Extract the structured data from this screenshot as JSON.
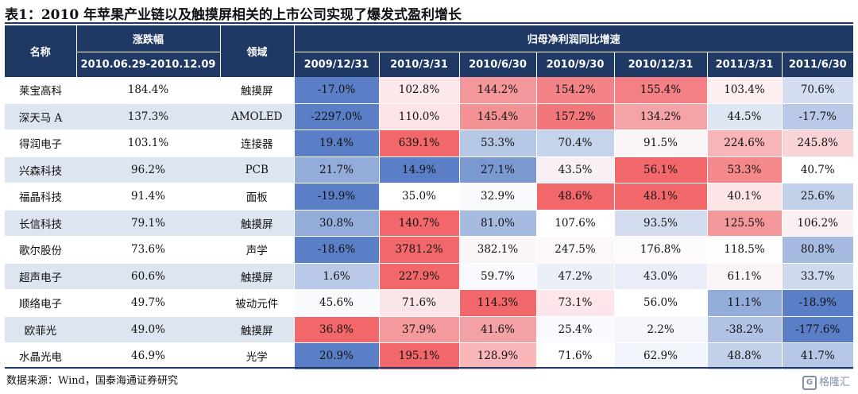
{
  "title": "表1：2010 年苹果产业链以及触摸屏相关的上市公司实现了爆发式盈利增长",
  "headers": {
    "name": "名称",
    "change": "涨跌幅",
    "change_period": "2010.06.29-2010.12.09",
    "field": "领域",
    "profit": "归母净利润同比增速",
    "periods": [
      "2009/12/31",
      "2010/3/31",
      "2010/6/30",
      "2010/9/30",
      "2010/12/31",
      "2011/3/31",
      "2011/6/30"
    ]
  },
  "colors": {
    "header_bg": "#1f3864",
    "alt_row": "#dde5f1",
    "positive_max": "#f2676a",
    "negative_max": "#5a7fc6"
  },
  "rows": [
    {
      "name": "莱宝高科",
      "change": "184.4%",
      "field": "触摸屏",
      "values": [
        "-17.0%",
        "102.8%",
        "144.2%",
        "154.2%",
        "155.4%",
        "103.4%",
        "70.6%"
      ]
    },
    {
      "name": "深天马 A",
      "change": "137.3%",
      "field": "AMOLED",
      "values": [
        "-2297.0%",
        "110.0%",
        "145.4%",
        "157.2%",
        "134.2%",
        "44.5%",
        "-17.7%"
      ]
    },
    {
      "name": "得润电子",
      "change": "103.1%",
      "field": "连接器",
      "values": [
        "19.4%",
        "639.1%",
        "53.3%",
        "70.4%",
        "91.5%",
        "224.6%",
        "245.8%"
      ]
    },
    {
      "name": "兴森科技",
      "change": "96.2%",
      "field": "PCB",
      "values": [
        "21.7%",
        "14.9%",
        "27.1%",
        "43.5%",
        "56.1%",
        "53.3%",
        "40.7%"
      ]
    },
    {
      "name": "福晶科技",
      "change": "91.4%",
      "field": "面板",
      "values": [
        "-19.9%",
        "35.0%",
        "32.9%",
        "48.6%",
        "48.1%",
        "40.1%",
        "25.6%"
      ]
    },
    {
      "name": "长信科技",
      "change": "79.1%",
      "field": "触摸屏",
      "values": [
        "30.8%",
        "140.7%",
        "81.0%",
        "107.6%",
        "93.5%",
        "125.5%",
        "106.2%"
      ]
    },
    {
      "name": "歌尔股份",
      "change": "73.6%",
      "field": "声学",
      "values": [
        "-18.6%",
        "3781.2%",
        "382.1%",
        "247.5%",
        "176.8%",
        "118.5%",
        "80.8%"
      ]
    },
    {
      "name": "超声电子",
      "change": "60.6%",
      "field": "触摸屏",
      "values": [
        "1.6%",
        "227.9%",
        "59.7%",
        "47.2%",
        "43.0%",
        "61.1%",
        "33.7%"
      ]
    },
    {
      "name": "顺络电子",
      "change": "49.7%",
      "field": "被动元件",
      "values": [
        "45.6%",
        "71.6%",
        "114.3%",
        "73.1%",
        "56.0%",
        "11.1%",
        "-18.9%"
      ]
    },
    {
      "name": "欧菲光",
      "change": "49.0%",
      "field": "触摸屏",
      "values": [
        "36.8%",
        "37.9%",
        "41.6%",
        "25.4%",
        "2.2%",
        "-38.2%",
        "-177.6%"
      ]
    },
    {
      "name": "水晶光电",
      "change": "46.9%",
      "field": "光学",
      "values": [
        "20.9%",
        "195.1%",
        "128.9%",
        "71.6%",
        "62.9%",
        "48.8%",
        "41.7%"
      ]
    }
  ],
  "cell_colors": [
    [
      "#5a7fc6",
      "#fce7ea",
      "#f4979a",
      "#f38386",
      "#f38084",
      "#fdeeef",
      "#d5def0"
    ],
    [
      "#5a7fc6",
      "#fbe3e6",
      "#f39295",
      "#f2777b",
      "#f4a3a6",
      "#dfe6f3",
      "#b9c9e7"
    ],
    [
      "#5a7fc6",
      "#f2676a",
      "#b6c7e6",
      "#c6d3ec",
      "#faf6f8",
      "#f7b5b8",
      "#f9d4d7"
    ],
    [
      "#94acda",
      "#5a7fc6",
      "#7c98d0",
      "#f8f0f2",
      "#f2676a",
      "#f4888b",
      "#ffffff"
    ],
    [
      "#5a7fc6",
      "#ffffff",
      "#f8fafd",
      "#f2676a",
      "#f2676a",
      "#fce4e7",
      "#c3d0ea"
    ],
    [
      "#94acda",
      "#f2676a",
      "#a7bae0",
      "#ffffff",
      "#d4dcef",
      "#f4989b",
      "#faeff1"
    ],
    [
      "#5a7fc6",
      "#f2676a",
      "#fbf6f7",
      "#fcf8f9",
      "#fdfafb",
      "#fdfdfe",
      "#a7bae0"
    ],
    [
      "#b9c9e7",
      "#f2676a",
      "#f8fafd",
      "#eaeff8",
      "#e8edf7",
      "#fcf5f6",
      "#ced9ee"
    ],
    [
      "#f8fafd",
      "#fae6e9",
      "#f2676a",
      "#fce6e9",
      "#ffffff",
      "#94acda",
      "#5a7fc6"
    ],
    [
      "#f2676a",
      "#f4999c",
      "#f3a1a4",
      "#f9fafd",
      "#f4f6fb",
      "#b2c2e5",
      "#5a7fc6"
    ],
    [
      "#5a7fc6",
      "#f2676a",
      "#fab7ba",
      "#ffffff",
      "#f1f4fb",
      "#c3d0ea",
      "#b5c6e6"
    ]
  ],
  "footer": "数据来源：Wind，国泰海通证券研究",
  "watermark": "格隆汇"
}
